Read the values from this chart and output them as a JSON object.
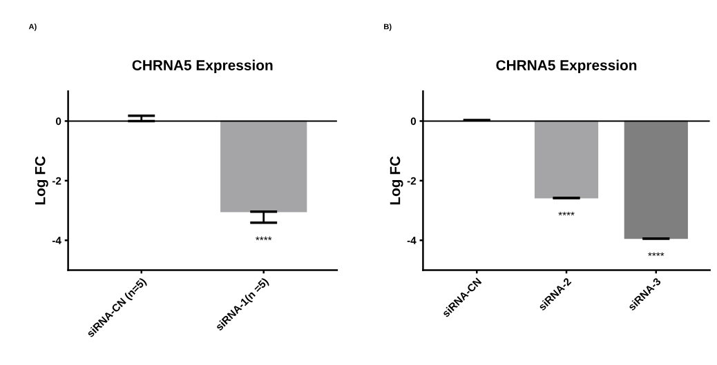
{
  "chart_data": [
    {
      "type": "bar",
      "title": "CHRNA5 Expression",
      "ylabel": "Log FC",
      "categories": [
        "siRNA-CN (n=5)",
        "siRNA-1(n =5)"
      ],
      "values": [
        0,
        -3.04
      ],
      "colors": [
        "#ffffff",
        "#a5a5a7"
      ],
      "errors": [
        [
          0,
          0.18
        ],
        [
          -3.41,
          -3.04
        ]
      ],
      "ylim": [
        -5,
        1
      ],
      "yticks": [
        0,
        -2,
        -4
      ],
      "ref_lines": [
        {
          "axis": "y",
          "value": 0
        }
      ],
      "annotations": [
        "A)",
        "****"
      ],
      "grid": false,
      "legend": false
    },
    {
      "type": "bar",
      "title": "CHRNA5 Expression",
      "ylabel": "Log FC",
      "categories": [
        "siRNA-CN",
        "siRNA-2",
        "siRNA-3"
      ],
      "values": [
        0.03,
        -2.58,
        -3.94
      ],
      "colors": [
        "#ffffff",
        "#a5a5a7",
        "#7f7f7f"
      ],
      "errors": [
        [
          0.03,
          0.03
        ],
        [
          -2.58,
          -2.58
        ],
        [
          -3.94,
          -3.94
        ]
      ],
      "ylim": [
        -5,
        1
      ],
      "yticks": [
        0,
        -2,
        -4
      ],
      "ref_lines": [
        {
          "axis": "y",
          "value": 0
        }
      ],
      "annotations": [
        "B)",
        "****",
        "****"
      ],
      "grid": false,
      "legend": false
    }
  ]
}
